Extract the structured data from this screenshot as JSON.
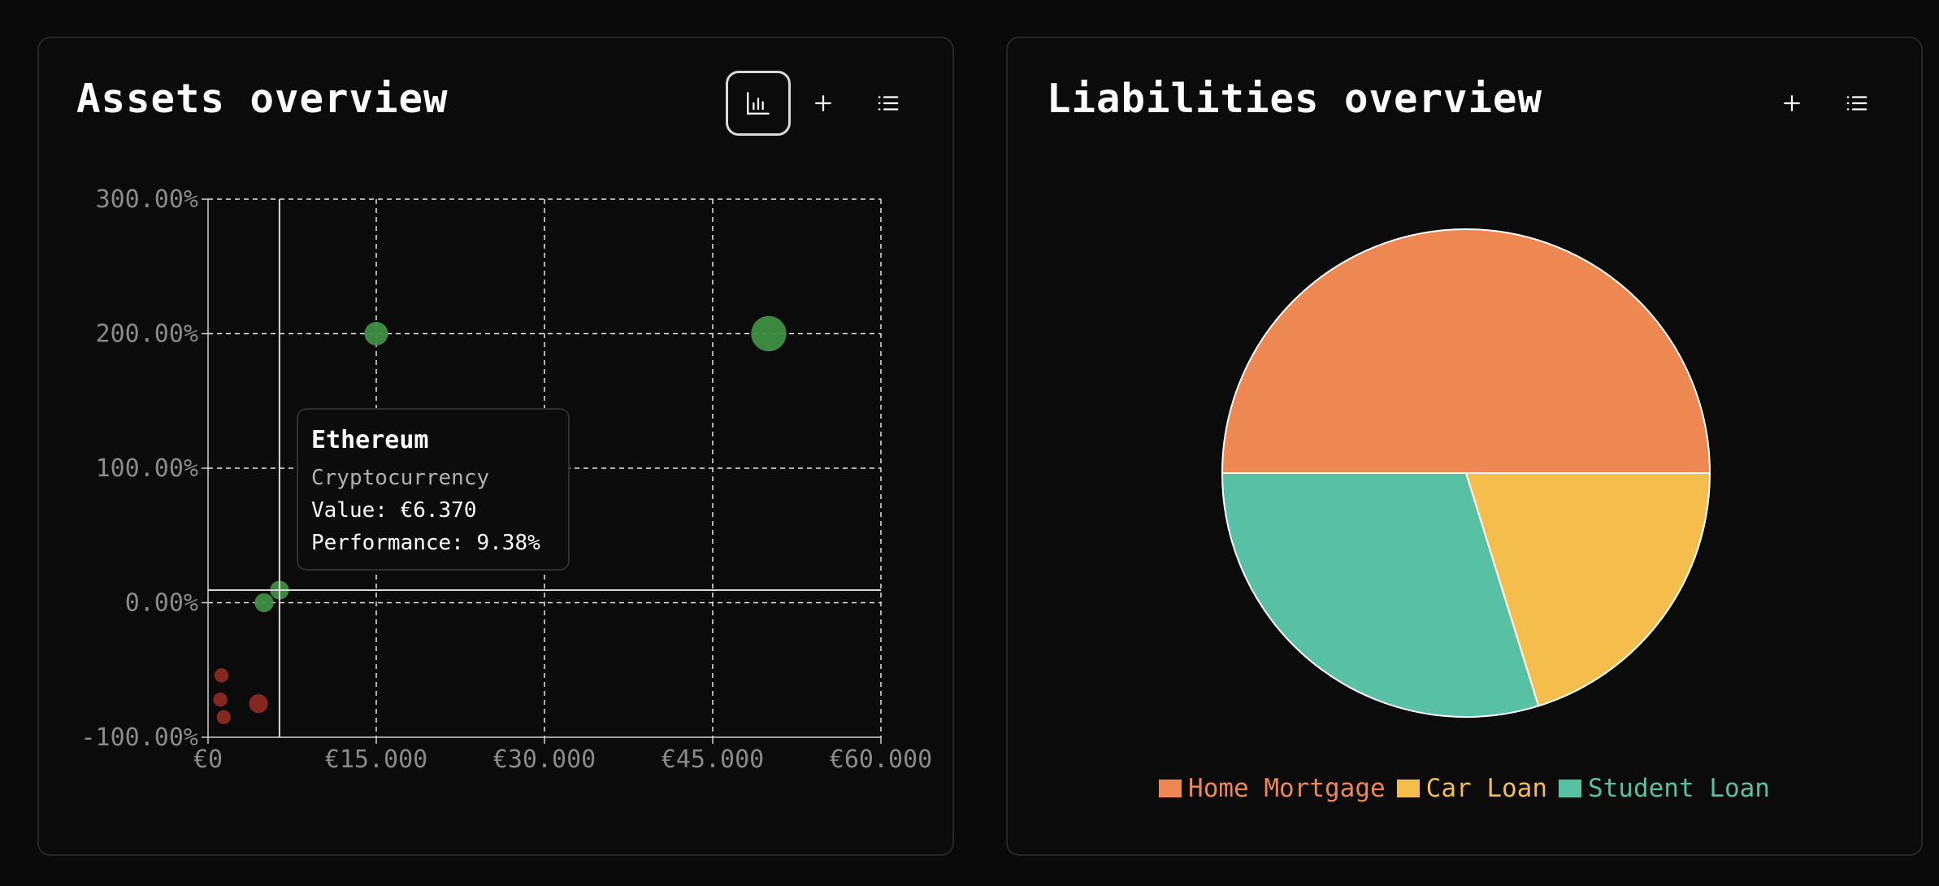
{
  "assets": {
    "title": "Assets overview",
    "buttons": {
      "chart": "chart-icon",
      "add": "plus-icon",
      "list": "list-icon"
    },
    "tooltip": {
      "title": "Ethereum",
      "subtitle": "Cryptocurrency",
      "value_line": "Value: €6.370",
      "performance_line": "Performance: 9.38%"
    }
  },
  "liabilities": {
    "title": "Liabilities overview",
    "buttons": {
      "add": "plus-icon",
      "list": "list-icon"
    }
  },
  "chart_data": [
    {
      "type": "scatter",
      "title": "",
      "xlabel": "",
      "ylabel": "",
      "xlim": [
        0,
        60000
      ],
      "ylim": [
        -100,
        300
      ],
      "x_ticks": [
        0,
        15000,
        30000,
        45000,
        60000
      ],
      "x_tick_labels": [
        "€0",
        "€15.000",
        "€30.000",
        "€45.000",
        "€60.000"
      ],
      "y_ticks": [
        -100,
        0,
        100,
        200,
        300
      ],
      "y_tick_labels": [
        "-100.00%",
        "0.00%",
        "100.00%",
        "200.00%",
        "300.00%"
      ],
      "grid": true,
      "crosshair": {
        "x": 6370,
        "y": 9.38
      },
      "colors": {
        "positive": "#3f8f45",
        "negative": "#8c2a22"
      },
      "points": [
        {
          "x": 15000,
          "y": 200,
          "size": 10
        },
        {
          "x": 50000,
          "y": 200,
          "size": 15
        },
        {
          "x": 6370,
          "y": 9.38,
          "size": 8
        },
        {
          "x": 5000,
          "y": 0,
          "size": 8
        },
        {
          "x": 1200,
          "y": -54,
          "size": 6
        },
        {
          "x": 1100,
          "y": -72,
          "size": 6
        },
        {
          "x": 1400,
          "y": -85,
          "size": 6
        },
        {
          "x": 4500,
          "y": -75,
          "size": 8
        }
      ]
    },
    {
      "type": "pie",
      "slices": [
        {
          "name": "Home Mortgage",
          "value": 50,
          "color": "#ee8852"
        },
        {
          "name": "Car Loan",
          "value": 20.2,
          "color": "#f4bd4c"
        },
        {
          "name": "Student Loan",
          "value": 29.8,
          "color": "#58c0a3"
        }
      ],
      "legend_position": "bottom"
    }
  ]
}
